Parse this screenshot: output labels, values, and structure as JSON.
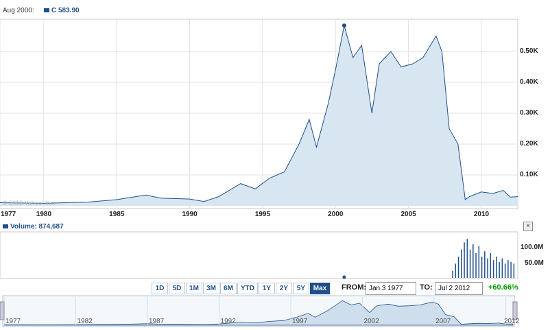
{
  "header": {
    "date_label": "Aug 2000:",
    "series_label": "C 583.90"
  },
  "volume": {
    "label": "Volume: 874,687",
    "y_ticks": [
      "100.0M",
      "50.0M"
    ]
  },
  "watermark": "© 2012 Yahoo! Inc.",
  "ranges": [
    "1D",
    "5D",
    "1M",
    "3M",
    "6M",
    "YTD",
    "1Y",
    "2Y",
    "5Y",
    "Max"
  ],
  "selected_range": "Max",
  "from": {
    "label": "FROM:",
    "value": "Jan 3 1977"
  },
  "to": {
    "label": "TO:",
    "value": "Jul 2 2012"
  },
  "change": "+60.66%",
  "close_glyph": "×",
  "colors": {
    "line": "#1f4e8c",
    "fill": "#d8e6f2",
    "up": "#009900"
  },
  "navigator": {
    "labels": [
      "1977",
      "1982",
      "1987",
      "1992",
      "1997",
      "2002",
      "2007",
      "2012"
    ]
  },
  "chart_data": {
    "type": "area",
    "y_ticks": [
      "0.50K",
      "0.40K",
      "0.30K",
      "0.20K",
      "0.10K"
    ],
    "x_ticks": [
      "1977",
      "1980",
      "1985",
      "1990",
      "1995",
      "2000",
      "2005",
      "2010"
    ],
    "x": [
      1977,
      1980,
      1983,
      1985,
      1987,
      1988,
      1990,
      1991,
      1992,
      1993.5,
      1994.5,
      1995.5,
      1996.5,
      1997.5,
      1998.2,
      1998.7,
      1999.5,
      2000.0,
      2000.6,
      2001.2,
      2001.8,
      2002.5,
      2003.0,
      2003.8,
      2004.5,
      2005.3,
      2006.0,
      2006.9,
      2007.3,
      2007.8,
      2008.4,
      2008.9,
      2009.2,
      2010.0,
      2010.8,
      2011.5,
      2012.0,
      2012.5
    ],
    "y": [
      10,
      8,
      12,
      20,
      35,
      25,
      22,
      14,
      30,
      72,
      55,
      90,
      110,
      200,
      280,
      190,
      330,
      440,
      584,
      480,
      520,
      300,
      460,
      500,
      450,
      460,
      480,
      550,
      500,
      250,
      200,
      20,
      30,
      45,
      40,
      50,
      28,
      30
    ],
    "ylim": [
      0,
      600
    ],
    "xlim": [
      1977,
      2012.5
    ],
    "highlight": {
      "x": 2000.6,
      "y": 583.9
    },
    "volume_series": {
      "x": [
        2008.0,
        2008.2,
        2008.4,
        2008.6,
        2008.8,
        2009.0,
        2009.2,
        2009.4,
        2009.6,
        2009.8,
        2010.0,
        2010.2,
        2010.4,
        2010.6,
        2010.8,
        2011.0,
        2011.2,
        2011.4,
        2011.6,
        2011.8,
        2012.0,
        2012.2
      ],
      "y": [
        20,
        40,
        60,
        80,
        100,
        110,
        80,
        95,
        70,
        90,
        60,
        75,
        55,
        70,
        50,
        60,
        45,
        55,
        40,
        50,
        45,
        40
      ],
      "ylim": [
        0,
        120
      ]
    }
  }
}
